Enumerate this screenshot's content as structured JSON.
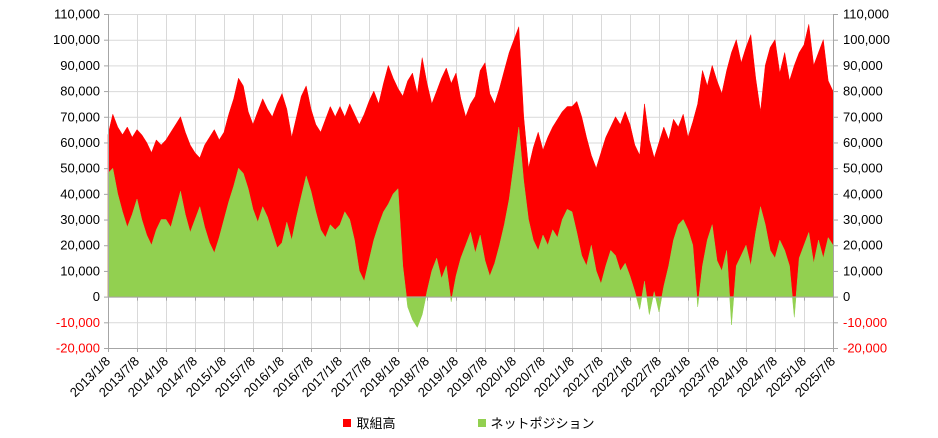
{
  "chart_data": {
    "type": "area",
    "title": "",
    "grid": true,
    "legend_position": "bottom",
    "ylim": [
      -20000,
      110000
    ],
    "y_ticks": [
      -20000,
      -10000,
      0,
      10000,
      20000,
      30000,
      40000,
      50000,
      60000,
      70000,
      80000,
      90000,
      100000,
      110000
    ],
    "negative_tick_color": "#FF0000",
    "tick_label_color": "#000000",
    "grid_color": "#D9D9D9",
    "axis_color": "#A6A6A6",
    "x_interval": "monthly",
    "x_start": "2013/1/8",
    "x_end": "2025/7/8",
    "x_tick_every": 6,
    "x_tick_labels": [
      "2013/1/8",
      "2013/7/8",
      "2014/1/8",
      "2014/7/8",
      "2015/1/8",
      "2015/7/8",
      "2016/1/8",
      "2016/7/8",
      "2017/1/8",
      "2017/7/8",
      "2018/1/8",
      "2018/7/8",
      "2019/1/8",
      "2019/7/8",
      "2020/1/8",
      "2020/7/8",
      "2021/1/8",
      "2021/7/8",
      "2022/1/8",
      "2022/7/8",
      "2023/1/8",
      "2023/7/8",
      "2024/1/8",
      "2024/7/8",
      "2025/1/8",
      "2025/7/8"
    ],
    "series": [
      {
        "name": "取組高",
        "color": "#FF0000",
        "values": [
          63000,
          71000,
          66000,
          63000,
          66000,
          62000,
          65000,
          63000,
          60000,
          56000,
          61000,
          59000,
          61000,
          64000,
          67000,
          70000,
          64000,
          59000,
          56000,
          54000,
          59000,
          62000,
          65000,
          61000,
          64000,
          71000,
          77000,
          85000,
          82000,
          72000,
          67000,
          72000,
          77000,
          73000,
          70000,
          75000,
          79000,
          73000,
          62000,
          70000,
          78000,
          82000,
          73000,
          67000,
          64000,
          69000,
          74000,
          70000,
          74000,
          70000,
          75000,
          71000,
          67000,
          71000,
          76000,
          80000,
          75000,
          83000,
          90000,
          85000,
          81000,
          78000,
          84000,
          87000,
          79000,
          93000,
          83000,
          75000,
          80000,
          85000,
          89000,
          83000,
          87000,
          77000,
          70000,
          75000,
          78000,
          88000,
          91000,
          79000,
          75000,
          81000,
          88000,
          95000,
          100000,
          105000,
          70000,
          50000,
          58000,
          64000,
          57000,
          62000,
          66000,
          69000,
          72000,
          74000,
          74000,
          76000,
          70000,
          62000,
          55000,
          50000,
          56000,
          62000,
          66000,
          70000,
          67000,
          72000,
          67000,
          59000,
          55000,
          75000,
          61000,
          54000,
          60000,
          66000,
          61000,
          69000,
          66000,
          71000,
          62000,
          68000,
          75000,
          88000,
          82000,
          90000,
          84000,
          79000,
          88000,
          95000,
          100000,
          91000,
          97000,
          102000,
          85000,
          72000,
          90000,
          97000,
          100000,
          87000,
          95000,
          84000,
          90000,
          95000,
          98000,
          106000,
          90000,
          95000,
          100000,
          84000,
          80000
        ]
      },
      {
        "name": "ネットポジション",
        "color": "#92D050",
        "values": [
          48000,
          50000,
          40000,
          33000,
          27000,
          32000,
          38000,
          30000,
          24000,
          20000,
          26000,
          30000,
          30000,
          27000,
          34000,
          41000,
          32000,
          25000,
          30000,
          35000,
          27000,
          21000,
          17000,
          23000,
          30000,
          37000,
          43000,
          50000,
          48000,
          42000,
          34000,
          29000,
          35000,
          31000,
          25000,
          19000,
          21000,
          29000,
          22000,
          31000,
          39000,
          47000,
          41000,
          33000,
          26000,
          23000,
          28000,
          26000,
          28000,
          33000,
          30000,
          22000,
          10000,
          6000,
          14000,
          22000,
          28000,
          33000,
          36000,
          40000,
          42000,
          12000,
          -4000,
          -9000,
          -12000,
          -7000,
          2000,
          10000,
          15000,
          7000,
          12000,
          -2000,
          8000,
          15000,
          20000,
          25000,
          17000,
          24000,
          14000,
          8000,
          13000,
          20000,
          28000,
          38000,
          52000,
          66000,
          45000,
          30000,
          22000,
          18000,
          24000,
          20000,
          26000,
          23000,
          30000,
          34000,
          33000,
          25000,
          16000,
          12000,
          20000,
          10000,
          5000,
          12000,
          18000,
          16000,
          10000,
          13000,
          8000,
          2000,
          -5000,
          6000,
          -7000,
          2000,
          -6000,
          4000,
          12000,
          22000,
          28000,
          30000,
          26000,
          20000,
          -4000,
          12000,
          22000,
          28000,
          14000,
          10000,
          18000,
          -11000,
          12000,
          16000,
          20000,
          12000,
          25000,
          35000,
          28000,
          18000,
          15000,
          22000,
          18000,
          12000,
          -8000,
          15000,
          20000,
          25000,
          13000,
          22000,
          15000,
          23000,
          20000
        ]
      }
    ]
  },
  "legend": {
    "items": [
      {
        "label": "取組高",
        "color": "#FF0000"
      },
      {
        "label": "ネットポジション",
        "color": "#92D050"
      }
    ]
  }
}
